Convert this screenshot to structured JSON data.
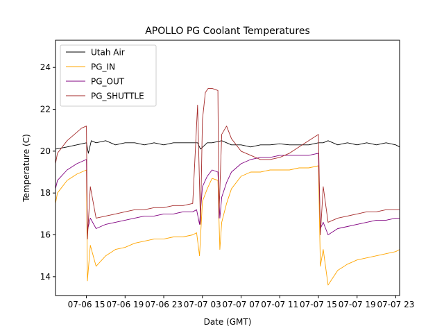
{
  "chart_data": {
    "type": "line",
    "title": "APOLLO PG Coolant Temperatures",
    "xlabel": "Date (GMT)",
    "ylabel": "Temperature (C)",
    "x_unit": "hours since 07-06 00:00 GMT",
    "xlim": [
      11.8,
      47.4
    ],
    "ylim": [
      13.1,
      25.3
    ],
    "x_ticks": [
      {
        "value": 15,
        "label": "07-06 15"
      },
      {
        "value": 19,
        "label": "07-06 19"
      },
      {
        "value": 23,
        "label": "07-06 23"
      },
      {
        "value": 27,
        "label": "07-07 03"
      },
      {
        "value": 31,
        "label": "07-07 07"
      },
      {
        "value": 35,
        "label": "07-07 11"
      },
      {
        "value": 39,
        "label": "07-07 15"
      },
      {
        "value": 43,
        "label": "07-07 19"
      },
      {
        "value": 47,
        "label": "07-07 23"
      }
    ],
    "y_ticks": [
      14,
      16,
      18,
      20,
      22,
      24
    ],
    "legend_position": "top-left",
    "series": [
      {
        "name": "Utah Air",
        "color": "#000000",
        "x": [
          11.8,
          13,
          14,
          15,
          15.2,
          15.5,
          16,
          17,
          18,
          19,
          20,
          21,
          22,
          23,
          24,
          25,
          26,
          26.5,
          26.8,
          27.5,
          28,
          29,
          30,
          31,
          32,
          33,
          34,
          35,
          36,
          37,
          38,
          39,
          39.5,
          40,
          41,
          42,
          43,
          44,
          45,
          46,
          47,
          47.4
        ],
        "y": [
          20.1,
          20.2,
          20.3,
          20.4,
          19.9,
          20.5,
          20.4,
          20.5,
          20.3,
          20.4,
          20.4,
          20.3,
          20.4,
          20.3,
          20.4,
          20.4,
          20.4,
          20.4,
          20.1,
          20.4,
          20.4,
          20.5,
          20.3,
          20.3,
          20.2,
          20.3,
          20.3,
          20.35,
          20.3,
          20.3,
          20.3,
          20.4,
          20.4,
          20.5,
          20.3,
          20.4,
          20.3,
          20.4,
          20.3,
          20.4,
          20.3,
          20.2
        ]
      },
      {
        "name": "PG_IN",
        "color": "#ffa500",
        "x": [
          11.8,
          12,
          13,
          14,
          15,
          15.1,
          15.4,
          16,
          17,
          18,
          19,
          20,
          21,
          22,
          23,
          24,
          25,
          26,
          26.4,
          26.7,
          27,
          27.5,
          28,
          28.6,
          28.8,
          29,
          29.5,
          30,
          31,
          32,
          33,
          34,
          35,
          36,
          37,
          38,
          39,
          39.2,
          39.5,
          40,
          41,
          42,
          43,
          44,
          45,
          46,
          47,
          47.4
        ],
        "y": [
          17.5,
          18.0,
          18.6,
          18.9,
          19.1,
          13.8,
          15.5,
          14.5,
          15.0,
          15.3,
          15.4,
          15.6,
          15.7,
          15.8,
          15.8,
          15.9,
          15.9,
          16.0,
          16.1,
          15.0,
          17.6,
          18.2,
          18.7,
          18.6,
          15.3,
          16.6,
          17.5,
          18.2,
          18.8,
          19.0,
          19.0,
          19.1,
          19.1,
          19.1,
          19.2,
          19.2,
          19.3,
          14.5,
          15.3,
          13.6,
          14.3,
          14.6,
          14.8,
          14.9,
          15.0,
          15.1,
          15.2,
          15.3
        ]
      },
      {
        "name": "PG_OUT",
        "color": "#800080",
        "x": [
          11.8,
          12,
          13,
          14,
          15,
          15.1,
          15.4,
          16,
          17,
          18,
          19,
          20,
          21,
          22,
          23,
          24,
          25,
          26,
          26.4,
          26.7,
          27,
          27.5,
          28,
          28.6,
          28.8,
          29,
          29.5,
          30,
          31,
          32,
          33,
          34,
          35,
          36,
          37,
          38,
          39,
          39.2,
          39.5,
          40,
          41,
          42,
          43,
          44,
          45,
          46,
          47,
          47.4
        ],
        "y": [
          18.2,
          18.6,
          19.1,
          19.4,
          19.6,
          16.2,
          16.8,
          16.3,
          16.5,
          16.6,
          16.7,
          16.8,
          16.9,
          16.9,
          17.0,
          17.0,
          17.1,
          17.1,
          17.2,
          16.5,
          18.3,
          18.8,
          19.1,
          19.0,
          16.8,
          17.8,
          18.5,
          19.0,
          19.4,
          19.6,
          19.7,
          19.7,
          19.8,
          19.8,
          19.8,
          19.8,
          19.9,
          16.3,
          16.6,
          16.0,
          16.3,
          16.4,
          16.5,
          16.6,
          16.7,
          16.7,
          16.8,
          16.8
        ]
      },
      {
        "name": "PG_SHUTTLE",
        "color": "#a52a2a",
        "x": [
          11.8,
          12,
          13,
          14,
          14.5,
          15,
          15.1,
          15.4,
          16,
          17,
          18,
          19,
          20,
          21,
          22,
          23,
          24,
          25,
          26,
          26.5,
          26.8,
          27,
          27.3,
          27.6,
          28,
          28.6,
          28.7,
          29,
          29.5,
          30,
          31,
          32,
          33,
          34,
          35,
          36,
          37,
          38,
          39,
          39.2,
          39.5,
          40,
          41,
          42,
          43,
          44,
          45,
          46,
          47,
          47.4
        ],
        "y": [
          19.4,
          19.9,
          20.5,
          20.9,
          21.1,
          21.2,
          15.8,
          18.3,
          16.8,
          16.9,
          17.0,
          17.1,
          17.2,
          17.2,
          17.3,
          17.3,
          17.4,
          17.4,
          17.5,
          22.2,
          16.5,
          21.5,
          22.8,
          23.0,
          23.0,
          22.9,
          16.8,
          20.8,
          21.2,
          20.6,
          20.0,
          19.8,
          19.6,
          19.6,
          19.7,
          19.9,
          20.2,
          20.5,
          20.8,
          16.0,
          18.3,
          16.6,
          16.8,
          16.9,
          17.0,
          17.1,
          17.1,
          17.2,
          17.2,
          17.2
        ]
      }
    ]
  }
}
